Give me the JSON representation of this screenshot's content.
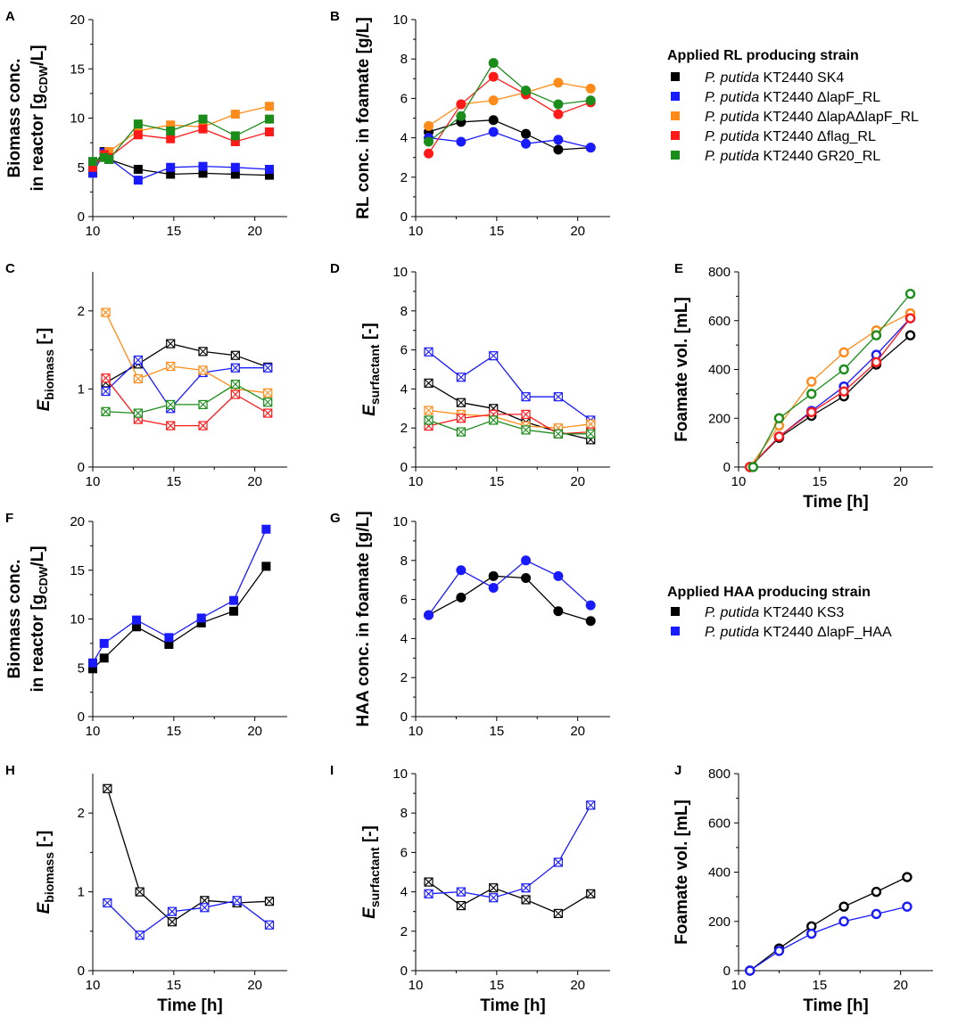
{
  "figure": {
    "legend_rl": {
      "title": "Applied RL producing strain",
      "items": [
        {
          "species": "P. putida",
          "name": "KT2440 SK4",
          "color": "#000000"
        },
        {
          "species": "P. putida",
          "name": "KT2440 ΔlapF_RL",
          "color": "#1a1aff"
        },
        {
          "species": "P. putida",
          "name": "KT2440 ΔlapAΔlapF_RL",
          "color": "#ff8c1a"
        },
        {
          "species": "P. putida",
          "name": "KT2440 Δflag_RL",
          "color": "#ff1a1a"
        },
        {
          "species": "P. putida",
          "name": "KT2440 GR20_RL",
          "color": "#1a8c1a"
        }
      ]
    },
    "legend_haa": {
      "title": "Applied HAA producing strain",
      "items": [
        {
          "species": "P. putida",
          "name": "KT2440 KS3",
          "color": "#000000"
        },
        {
          "species": "P. putida",
          "name": "KT2440 ΔlapF_HAA",
          "color": "#1a1aff"
        }
      ]
    }
  },
  "chart_data": [
    {
      "panel": "A",
      "type": "line",
      "marker": "square",
      "xlabel": "",
      "ylabel_lines": [
        "Biomass conc.",
        "in reactor [g",
        "CDW",
        "/L]"
      ],
      "xlim": [
        10,
        22
      ],
      "ylim": [
        0,
        20
      ],
      "xticks": [
        10,
        15,
        20
      ],
      "yticks": [
        0,
        5,
        10,
        15,
        20
      ],
      "series": [
        {
          "name": "SK4",
          "color": "#000000",
          "x": [
            10,
            10.7,
            11,
            12.8,
            14.8,
            16.8,
            18.8,
            20.9
          ],
          "y": [
            5.1,
            6.6,
            5.8,
            4.8,
            4.3,
            4.4,
            4.3,
            4.2
          ]
        },
        {
          "name": "ΔlapF_RL",
          "color": "#1a1aff",
          "x": [
            10,
            10.7,
            11,
            12.8,
            14.8,
            16.8,
            18.8,
            20.9
          ],
          "y": [
            4.4,
            6.5,
            5.9,
            3.7,
            5.0,
            5.1,
            5.0,
            4.8
          ]
        },
        {
          "name": "ΔlapAΔlapF_RL",
          "color": "#ff8c1a",
          "x": [
            10,
            10.7,
            11,
            12.8,
            14.8,
            16.8,
            18.8,
            20.9
          ],
          "y": [
            5.2,
            6.1,
            6.6,
            8.7,
            9.3,
            9.1,
            10.4,
            11.2
          ]
        },
        {
          "name": "Δflag_RL",
          "color": "#ff1a1a",
          "x": [
            10,
            10.7,
            11,
            12.8,
            14.8,
            16.8,
            18.8,
            20.9
          ],
          "y": [
            5.0,
            6.3,
            6.0,
            8.3,
            7.9,
            8.9,
            7.6,
            8.6
          ]
        },
        {
          "name": "GR20_RL",
          "color": "#1a8c1a",
          "x": [
            10,
            10.7,
            11,
            12.8,
            14.8,
            16.8,
            18.8,
            20.9
          ],
          "y": [
            5.6,
            6.0,
            5.8,
            9.4,
            8.7,
            9.9,
            8.2,
            9.9
          ]
        }
      ]
    },
    {
      "panel": "B",
      "type": "line",
      "marker": "circle",
      "xlabel": "",
      "ylabel_lines": [
        "RL conc. in foamate [g/L]"
      ],
      "xlim": [
        10,
        22
      ],
      "ylim": [
        0,
        10
      ],
      "xticks": [
        10,
        15,
        20
      ],
      "yticks": [
        0,
        2,
        4,
        6,
        8,
        10
      ],
      "series": [
        {
          "name": "SK4",
          "color": "#000000",
          "x": [
            10.8,
            12.8,
            14.8,
            16.8,
            18.8,
            20.8
          ],
          "y": [
            4.3,
            4.8,
            4.9,
            4.2,
            3.4,
            3.5
          ]
        },
        {
          "name": "ΔlapF_RL",
          "color": "#1a1aff",
          "x": [
            10.8,
            12.8,
            14.8,
            16.8,
            18.8,
            20.8
          ],
          "y": [
            4.0,
            3.8,
            4.3,
            3.7,
            3.9,
            3.5
          ]
        },
        {
          "name": "ΔlapAΔlapF_RL",
          "color": "#ff8c1a",
          "x": [
            10.8,
            12.8,
            14.8,
            16.8,
            18.8,
            20.8
          ],
          "y": [
            4.6,
            5.7,
            5.9,
            6.3,
            6.8,
            6.5
          ]
        },
        {
          "name": "Δflag_RL",
          "color": "#ff1a1a",
          "x": [
            10.8,
            12.8,
            14.8,
            16.8,
            18.8,
            20.8
          ],
          "y": [
            3.2,
            5.7,
            7.1,
            6.2,
            5.2,
            5.8
          ]
        },
        {
          "name": "GR20_RL",
          "color": "#1a8c1a",
          "x": [
            10.8,
            12.8,
            14.8,
            16.8,
            18.8,
            20.8
          ],
          "y": [
            3.8,
            5.1,
            7.8,
            6.4,
            5.7,
            5.9
          ]
        }
      ]
    },
    {
      "panel": "C",
      "type": "line",
      "marker": "xsquare",
      "xlabel": "",
      "ylabel_main": "E",
      "ylabel_sub": "biomass",
      "ylabel_tail": " [-]",
      "xlim": [
        10,
        22
      ],
      "ylim": [
        0,
        2.5
      ],
      "xticks": [
        10,
        15,
        20
      ],
      "yticks": [
        0,
        1,
        2
      ],
      "series": [
        {
          "name": "SK4",
          "color": "#000000",
          "x": [
            10.8,
            12.8,
            14.8,
            16.8,
            18.8,
            20.8
          ],
          "y": [
            1.08,
            1.32,
            1.58,
            1.48,
            1.43,
            1.28
          ]
        },
        {
          "name": "ΔlapF_RL",
          "color": "#1a1aff",
          "x": [
            10.8,
            12.8,
            14.8,
            16.8,
            18.8,
            20.8
          ],
          "y": [
            0.97,
            1.37,
            0.75,
            1.21,
            1.27,
            1.27
          ]
        },
        {
          "name": "ΔlapAΔlapF_RL",
          "color": "#ff8c1a",
          "x": [
            10.8,
            12.8,
            14.8,
            16.8,
            18.8,
            20.8
          ],
          "y": [
            1.98,
            1.13,
            1.29,
            1.24,
            1.0,
            0.95
          ]
        },
        {
          "name": "Δflag_RL",
          "color": "#ff1a1a",
          "x": [
            10.8,
            12.8,
            14.8,
            16.8,
            18.8,
            20.8
          ],
          "y": [
            1.14,
            0.61,
            0.53,
            0.53,
            0.93,
            0.69
          ]
        },
        {
          "name": "GR20_RL",
          "color": "#1a8c1a",
          "x": [
            10.8,
            12.8,
            14.8,
            16.8,
            18.8,
            20.8
          ],
          "y": [
            0.71,
            0.69,
            0.8,
            0.8,
            1.06,
            0.83
          ]
        }
      ]
    },
    {
      "panel": "D",
      "type": "line",
      "marker": "xsquare",
      "xlabel": "",
      "ylabel_main": "E",
      "ylabel_sub": "surfactant",
      "ylabel_tail": " [-]",
      "xlim": [
        10,
        22
      ],
      "ylim": [
        0,
        10
      ],
      "xticks": [
        10,
        15,
        20
      ],
      "yticks": [
        0,
        2,
        4,
        6,
        8,
        10
      ],
      "series": [
        {
          "name": "SK4",
          "color": "#000000",
          "x": [
            10.8,
            12.8,
            14.8,
            16.8,
            18.8,
            20.8
          ],
          "y": [
            4.3,
            3.3,
            3.0,
            2.3,
            1.8,
            1.4
          ]
        },
        {
          "name": "ΔlapF_RL",
          "color": "#1a1aff",
          "x": [
            10.8,
            12.8,
            14.8,
            16.8,
            18.8,
            20.8
          ],
          "y": [
            5.9,
            4.6,
            5.7,
            3.6,
            3.6,
            2.4
          ]
        },
        {
          "name": "ΔlapAΔlapF_RL",
          "color": "#ff8c1a",
          "x": [
            10.8,
            12.8,
            14.8,
            16.8,
            18.8,
            20.8
          ],
          "y": [
            2.9,
            2.7,
            2.6,
            2.1,
            2.0,
            2.2
          ]
        },
        {
          "name": "Δflag_RL",
          "color": "#ff1a1a",
          "x": [
            10.8,
            12.8,
            14.8,
            16.8,
            18.8,
            20.8
          ],
          "y": [
            2.1,
            2.5,
            2.7,
            2.7,
            1.7,
            1.8
          ]
        },
        {
          "name": "GR20_RL",
          "color": "#1a8c1a",
          "x": [
            10.8,
            12.8,
            14.8,
            16.8,
            18.8,
            20.8
          ],
          "y": [
            2.4,
            1.8,
            2.4,
            1.9,
            1.7,
            1.7
          ]
        }
      ]
    },
    {
      "panel": "E",
      "type": "line",
      "marker": "circle-open",
      "xlabel": "Time [h]",
      "ylabel_lines": [
        "Foamate vol. [mL]"
      ],
      "xlim": [
        10,
        22
      ],
      "ylim": [
        0,
        800
      ],
      "xticks": [
        10,
        15,
        20
      ],
      "yticks": [
        0,
        200,
        400,
        600,
        800
      ],
      "series": [
        {
          "name": "SK4",
          "color": "#000000",
          "x": [
            10.7,
            12.5,
            14.5,
            16.5,
            18.5,
            20.6
          ],
          "y": [
            0,
            120,
            210,
            290,
            420,
            540
          ]
        },
        {
          "name": "ΔlapF_RL",
          "color": "#1a1aff",
          "x": [
            10.7,
            12.5,
            14.5,
            16.5,
            18.5,
            20.6
          ],
          "y": [
            0,
            125,
            230,
            330,
            460,
            610
          ]
        },
        {
          "name": "ΔlapAΔlapF_RL",
          "color": "#ff8c1a",
          "x": [
            10.7,
            12.5,
            14.5,
            16.5,
            18.5,
            20.6
          ],
          "y": [
            0,
            170,
            350,
            470,
            560,
            630
          ]
        },
        {
          "name": "Δflag_RL",
          "color": "#ff1a1a",
          "x": [
            10.7,
            12.5,
            14.5,
            16.5,
            18.5,
            20.6
          ],
          "y": [
            0,
            125,
            225,
            310,
            430,
            610
          ]
        },
        {
          "name": "GR20_RL",
          "color": "#1a8c1a",
          "x": [
            10.9,
            12.5,
            14.5,
            16.5,
            18.5,
            20.6
          ],
          "y": [
            0,
            200,
            300,
            400,
            540,
            710
          ]
        }
      ]
    },
    {
      "panel": "F",
      "type": "line",
      "marker": "square",
      "xlabel": "",
      "ylabel_lines": [
        "Biomass conc.",
        "in reactor [g",
        "CDW",
        "/L]"
      ],
      "xlim": [
        10,
        22
      ],
      "ylim": [
        0,
        20
      ],
      "xticks": [
        10,
        15,
        20
      ],
      "yticks": [
        0,
        5,
        10,
        15,
        20
      ],
      "series": [
        {
          "name": "KS3",
          "color": "#000000",
          "x": [
            10,
            10.7,
            12.7,
            14.7,
            16.7,
            18.7,
            20.7
          ],
          "y": [
            4.9,
            6.0,
            9.2,
            7.4,
            9.6,
            10.8,
            15.4
          ]
        },
        {
          "name": "ΔlapF_HAA",
          "color": "#1a1aff",
          "x": [
            10,
            10.7,
            12.7,
            14.7,
            16.7,
            18.7,
            20.7
          ],
          "y": [
            5.5,
            7.5,
            9.9,
            8.1,
            10.1,
            11.9,
            19.2
          ]
        }
      ]
    },
    {
      "panel": "G",
      "type": "line",
      "marker": "circle",
      "xlabel": "",
      "ylabel_lines": [
        "HAA conc. in foamate [g/L]"
      ],
      "xlim": [
        10,
        22
      ],
      "ylim": [
        0,
        10
      ],
      "xticks": [
        10,
        15,
        20
      ],
      "yticks": [
        0,
        2,
        4,
        6,
        8,
        10
      ],
      "series": [
        {
          "name": "KS3",
          "color": "#000000",
          "x": [
            10.8,
            12.8,
            14.8,
            16.8,
            18.8,
            20.8
          ],
          "y": [
            5.2,
            6.1,
            7.2,
            7.1,
            5.4,
            4.9
          ]
        },
        {
          "name": "ΔlapF_HAA",
          "color": "#1a1aff",
          "x": [
            10.8,
            12.8,
            14.8,
            16.8,
            18.8,
            20.8
          ],
          "y": [
            5.2,
            7.5,
            6.6,
            8.0,
            7.2,
            5.7
          ]
        }
      ]
    },
    {
      "panel": "H",
      "type": "line",
      "marker": "xsquare",
      "xlabel": "Time [h]",
      "ylabel_main": "E",
      "ylabel_sub": "biomass",
      "ylabel_tail": " [-]",
      "xlim": [
        10,
        22
      ],
      "ylim": [
        0,
        2.5
      ],
      "xticks": [
        10,
        15,
        20
      ],
      "yticks": [
        0,
        1,
        2
      ],
      "series": [
        {
          "name": "KS3",
          "color": "#000000",
          "x": [
            10.9,
            12.9,
            14.9,
            16.9,
            18.9,
            20.9
          ],
          "y": [
            2.31,
            1.0,
            0.62,
            0.89,
            0.86,
            0.88
          ]
        },
        {
          "name": "ΔlapF_HAA",
          "color": "#1a1aff",
          "x": [
            10.9,
            12.9,
            14.9,
            16.9,
            18.9,
            20.9
          ],
          "y": [
            0.86,
            0.45,
            0.75,
            0.8,
            0.89,
            0.58
          ]
        }
      ]
    },
    {
      "panel": "I",
      "type": "line",
      "marker": "xsquare",
      "xlabel": "Time [h]",
      "ylabel_main": "E",
      "ylabel_sub": "surfactant",
      "ylabel_tail": " [-]",
      "xlim": [
        10,
        22
      ],
      "ylim": [
        0,
        10
      ],
      "xticks": [
        10,
        15,
        20
      ],
      "yticks": [
        0,
        2,
        4,
        6,
        8,
        10
      ],
      "series": [
        {
          "name": "KS3",
          "color": "#000000",
          "x": [
            10.8,
            12.8,
            14.8,
            16.8,
            18.8,
            20.8
          ],
          "y": [
            4.5,
            3.3,
            4.2,
            3.6,
            2.9,
            3.9
          ]
        },
        {
          "name": "ΔlapF_HAA",
          "color": "#1a1aff",
          "x": [
            10.8,
            12.8,
            14.8,
            16.8,
            18.8,
            20.8
          ],
          "y": [
            3.9,
            4.0,
            3.7,
            4.2,
            5.5,
            8.4
          ]
        }
      ]
    },
    {
      "panel": "J",
      "type": "line",
      "marker": "circle-open",
      "xlabel": "Time [h]",
      "ylabel_lines": [
        "Foamate vol. [mL]"
      ],
      "xlim": [
        10,
        22
      ],
      "ylim": [
        0,
        800
      ],
      "xticks": [
        10,
        15,
        20
      ],
      "yticks": [
        0,
        200,
        400,
        600,
        800
      ],
      "series": [
        {
          "name": "KS3",
          "color": "#000000",
          "x": [
            10.7,
            12.5,
            14.5,
            16.5,
            18.5,
            20.4
          ],
          "y": [
            0,
            90,
            180,
            260,
            320,
            380
          ]
        },
        {
          "name": "ΔlapF_HAA",
          "color": "#1a1aff",
          "x": [
            10.7,
            12.5,
            14.5,
            16.5,
            18.5,
            20.4
          ],
          "y": [
            0,
            80,
            150,
            200,
            230,
            260
          ]
        }
      ]
    }
  ]
}
